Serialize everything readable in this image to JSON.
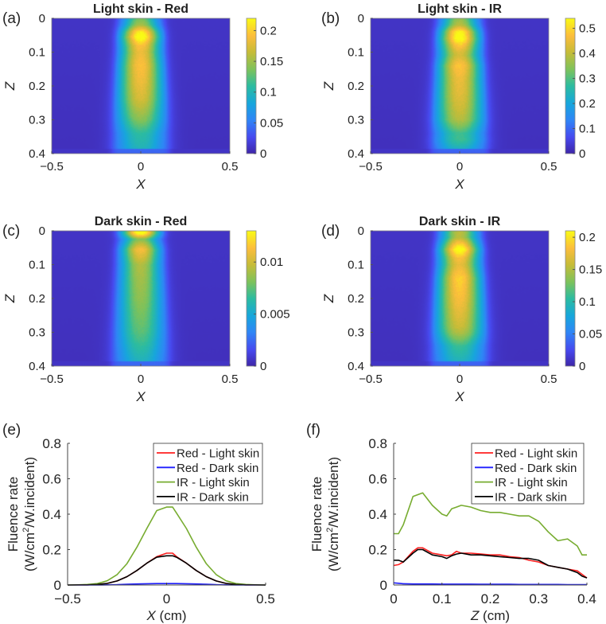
{
  "colors": {
    "red": "#ff1f1f",
    "blue": "#1f1fff",
    "green": "#77ac30",
    "black": "#000000"
  },
  "chart_data": [
    {
      "type": "heatmap",
      "panel_label": "(a)",
      "title": "Light skin - Red",
      "xlabel": "X",
      "ylabel": "Z",
      "xlim": [
        -0.5,
        0.5
      ],
      "ylim": [
        0,
        0.4
      ],
      "xticks": [
        {
          "v": -0.5,
          "label": "−0.5"
        },
        {
          "v": 0,
          "label": "0"
        },
        {
          "v": 0.5,
          "label": "0.5"
        }
      ],
      "yticks": [
        {
          "v": 0,
          "label": "0"
        },
        {
          "v": 0.1,
          "label": "0.1"
        },
        {
          "v": 0.2,
          "label": "0.2"
        },
        {
          "v": 0.3,
          "label": "0.3"
        },
        {
          "v": 0.4,
          "label": "0.4"
        }
      ],
      "colorbar": {
        "min": 0,
        "max": 0.22,
        "ticks": [
          {
            "v": 0,
            "label": "0"
          },
          {
            "v": 0.05,
            "label": "0.05"
          },
          {
            "v": 0.1,
            "label": "0.1"
          },
          {
            "v": 0.15,
            "label": "0.15"
          },
          {
            "v": 0.2,
            "label": "0.2"
          }
        ]
      },
      "centerline_profile": {
        "z": [
          0,
          0.02,
          0.04,
          0.055,
          0.08,
          0.1,
          0.14,
          0.2,
          0.24,
          0.28,
          0.3,
          0.34,
          0.38,
          0.4
        ],
        "values": [
          0.12,
          0.14,
          0.2,
          0.215,
          0.18,
          0.17,
          0.18,
          0.17,
          0.16,
          0.14,
          0.13,
          0.1,
          0.09,
          0.08
        ]
      }
    },
    {
      "type": "heatmap",
      "panel_label": "(b)",
      "title": "Light skin - IR",
      "xlabel": "X",
      "ylabel": "Z",
      "xlim": [
        -0.5,
        0.5
      ],
      "ylim": [
        0,
        0.4
      ],
      "xticks": [
        {
          "v": -0.5,
          "label": "−0.5"
        },
        {
          "v": 0,
          "label": "0"
        },
        {
          "v": 0.5,
          "label": "0.5"
        }
      ],
      "yticks": [
        {
          "v": 0,
          "label": "0"
        },
        {
          "v": 0.1,
          "label": "0.1"
        },
        {
          "v": 0.2,
          "label": "0.2"
        },
        {
          "v": 0.3,
          "label": "0.3"
        },
        {
          "v": 0.4,
          "label": "0.4"
        }
      ],
      "colorbar": {
        "min": 0,
        "max": 0.54,
        "ticks": [
          {
            "v": 0,
            "label": "0"
          },
          {
            "v": 0.1,
            "label": "0.1"
          },
          {
            "v": 0.2,
            "label": "0.2"
          },
          {
            "v": 0.3,
            "label": "0.3"
          },
          {
            "v": 0.4,
            "label": "0.4"
          },
          {
            "v": 0.5,
            "label": "0.5"
          }
        ]
      },
      "centerline_profile": {
        "z": [
          0,
          0.02,
          0.04,
          0.06,
          0.08,
          0.1,
          0.11,
          0.14,
          0.18,
          0.22,
          0.26,
          0.3,
          0.34,
          0.36,
          0.38,
          0.4
        ],
        "values": [
          0.32,
          0.36,
          0.5,
          0.52,
          0.45,
          0.4,
          0.39,
          0.45,
          0.42,
          0.41,
          0.39,
          0.36,
          0.26,
          0.26,
          0.22,
          0.18
        ]
      }
    },
    {
      "type": "heatmap",
      "panel_label": "(c)",
      "title": "Dark skin - Red",
      "xlabel": "X",
      "ylabel": "Z",
      "xlim": [
        -0.5,
        0.5
      ],
      "ylim": [
        0,
        0.4
      ],
      "xticks": [
        {
          "v": -0.5,
          "label": "−0.5"
        },
        {
          "v": 0,
          "label": "0"
        },
        {
          "v": 0.5,
          "label": "0.5"
        }
      ],
      "yticks": [
        {
          "v": 0,
          "label": "0"
        },
        {
          "v": 0.1,
          "label": "0.1"
        },
        {
          "v": 0.2,
          "label": "0.2"
        },
        {
          "v": 0.3,
          "label": "0.3"
        },
        {
          "v": 0.4,
          "label": "0.4"
        }
      ],
      "colorbar": {
        "min": 0,
        "max": 0.013,
        "ticks": [
          {
            "v": 0,
            "label": "0"
          },
          {
            "v": 0.005,
            "label": "0.005"
          },
          {
            "v": 0.01,
            "label": "0.01"
          }
        ]
      },
      "centerline_profile": {
        "z": [
          0,
          0.008,
          0.025,
          0.055,
          0.1,
          0.2,
          0.3,
          0.38,
          0.4
        ],
        "values": [
          0.013,
          0.0125,
          0.0075,
          0.0105,
          0.0085,
          0.0078,
          0.0068,
          0.0052,
          0.005
        ]
      }
    },
    {
      "type": "heatmap",
      "panel_label": "(d)",
      "title": "Dark skin - IR",
      "xlabel": "X",
      "ylabel": "Z",
      "xlim": [
        -0.5,
        0.5
      ],
      "ylim": [
        0,
        0.4
      ],
      "xticks": [
        {
          "v": -0.5,
          "label": "−0.5"
        },
        {
          "v": 0,
          "label": "0"
        },
        {
          "v": 0.5,
          "label": "0.5"
        }
      ],
      "yticks": [
        {
          "v": 0,
          "label": "0"
        },
        {
          "v": 0.1,
          "label": "0.1"
        },
        {
          "v": 0.2,
          "label": "0.2"
        },
        {
          "v": 0.3,
          "label": "0.3"
        },
        {
          "v": 0.4,
          "label": "0.4"
        }
      ],
      "colorbar": {
        "min": 0,
        "max": 0.21,
        "ticks": [
          {
            "v": 0,
            "label": "0"
          },
          {
            "v": 0.05,
            "label": "0.05"
          },
          {
            "v": 0.1,
            "label": "0.1"
          },
          {
            "v": 0.15,
            "label": "0.15"
          },
          {
            "v": 0.2,
            "label": "0.2"
          }
        ]
      },
      "centerline_profile": {
        "z": [
          0,
          0.02,
          0.04,
          0.055,
          0.08,
          0.1,
          0.14,
          0.2,
          0.24,
          0.28,
          0.3,
          0.34,
          0.38,
          0.4
        ],
        "values": [
          0.14,
          0.14,
          0.18,
          0.205,
          0.17,
          0.16,
          0.18,
          0.17,
          0.16,
          0.15,
          0.14,
          0.1,
          0.085,
          0.07
        ]
      }
    },
    {
      "type": "line",
      "panel_label": "(e)",
      "xlabel": "X",
      "xlabel_unit": " (cm)",
      "ylabel_line1": "Fluence rate",
      "ylabel_line2_a": "(W/cm",
      "ylabel_line2_sup": "2",
      "ylabel_line2_b": "/W.incident)",
      "xlim": [
        -0.5,
        0.5
      ],
      "ylim": [
        0,
        0.8
      ],
      "xticks": [
        {
          "v": -0.5,
          "label": "−0.5"
        },
        {
          "v": 0,
          "label": "0"
        },
        {
          "v": 0.5,
          "label": "0.5"
        }
      ],
      "yticks": [
        {
          "v": 0,
          "label": "0"
        },
        {
          "v": 0.2,
          "label": "0.2"
        },
        {
          "v": 0.4,
          "label": "0.4"
        },
        {
          "v": 0.6,
          "label": "0.6"
        },
        {
          "v": 0.8,
          "label": "0.8"
        }
      ],
      "legend_position": "top-right",
      "x": [
        -0.5,
        -0.45,
        -0.4,
        -0.35,
        -0.3,
        -0.25,
        -0.2,
        -0.15,
        -0.1,
        -0.05,
        0,
        0.03,
        0.05,
        0.1,
        0.15,
        0.2,
        0.25,
        0.3,
        0.35,
        0.4,
        0.45,
        0.5
      ],
      "series": [
        {
          "name": "Red - Light skin",
          "color_key": "red",
          "values": [
            0,
            0.001,
            0.001,
            0.003,
            0.009,
            0.023,
            0.047,
            0.082,
            0.123,
            0.16,
            0.18,
            0.18,
            0.16,
            0.123,
            0.082,
            0.047,
            0.023,
            0.009,
            0.003,
            0.001,
            0.001,
            0
          ]
        },
        {
          "name": "Red - Dark skin",
          "color_key": "blue",
          "values": [
            0,
            0,
            0,
            0,
            0.001,
            0.002,
            0.004,
            0.006,
            0.007,
            0.008,
            0.008,
            0.008,
            0.008,
            0.007,
            0.006,
            0.004,
            0.002,
            0.001,
            0,
            0,
            0,
            0
          ]
        },
        {
          "name": "IR - Light skin",
          "color_key": "green",
          "values": [
            0,
            0.001,
            0.003,
            0.008,
            0.024,
            0.059,
            0.121,
            0.213,
            0.319,
            0.42,
            0.44,
            0.44,
            0.406,
            0.319,
            0.213,
            0.121,
            0.059,
            0.024,
            0.008,
            0.003,
            0.001,
            0
          ]
        },
        {
          "name": "IR - Dark skin",
          "color_key": "black",
          "values": [
            0,
            0.001,
            0.001,
            0.003,
            0.009,
            0.023,
            0.047,
            0.082,
            0.123,
            0.157,
            0.165,
            0.165,
            0.157,
            0.123,
            0.082,
            0.047,
            0.023,
            0.009,
            0.003,
            0.001,
            0.001,
            0
          ]
        }
      ]
    },
    {
      "type": "line",
      "panel_label": "(f)",
      "xlabel": "Z",
      "xlabel_unit": " (cm)",
      "ylabel_line1": "Fluence rate",
      "ylabel_line2_a": "(W/cm",
      "ylabel_line2_sup": "2",
      "ylabel_line2_b": "/W.incident)",
      "xlim": [
        0,
        0.4
      ],
      "ylim": [
        0,
        0.8
      ],
      "xticks": [
        {
          "v": 0,
          "label": "0"
        },
        {
          "v": 0.1,
          "label": "0.1"
        },
        {
          "v": 0.2,
          "label": "0.2"
        },
        {
          "v": 0.3,
          "label": "0.3"
        },
        {
          "v": 0.4,
          "label": "0.4"
        }
      ],
      "yticks": [
        {
          "v": 0,
          "label": "0"
        },
        {
          "v": 0.2,
          "label": "0.2"
        },
        {
          "v": 0.4,
          "label": "0.4"
        },
        {
          "v": 0.6,
          "label": "0.6"
        },
        {
          "v": 0.8,
          "label": "0.8"
        }
      ],
      "legend_position": "top-right",
      "x": [
        0,
        0.01,
        0.02,
        0.04,
        0.05,
        0.06,
        0.08,
        0.1,
        0.11,
        0.12,
        0.13,
        0.14,
        0.16,
        0.18,
        0.2,
        0.22,
        0.24,
        0.26,
        0.28,
        0.3,
        0.32,
        0.34,
        0.36,
        0.38,
        0.39,
        0.4
      ],
      "series": [
        {
          "name": "Red - Light skin",
          "color_key": "red",
          "values": [
            0.11,
            0.115,
            0.13,
            0.19,
            0.21,
            0.21,
            0.18,
            0.17,
            0.165,
            0.17,
            0.19,
            0.18,
            0.18,
            0.175,
            0.17,
            0.17,
            0.16,
            0.155,
            0.14,
            0.13,
            0.11,
            0.1,
            0.09,
            0.08,
            0.06,
            0.04
          ]
        },
        {
          "name": "Red - Dark skin",
          "color_key": "blue",
          "values": [
            0.012,
            0.01,
            0.007,
            0.006,
            0.006,
            0.006,
            0.006,
            0.005,
            0.005,
            0.005,
            0.005,
            0.005,
            0.005,
            0.004,
            0.004,
            0.004,
            0.004,
            0.003,
            0.003,
            0.003,
            0.003,
            0.003,
            0.002,
            0.002,
            0.002,
            0.002
          ]
        },
        {
          "name": "IR - Light skin",
          "color_key": "green",
          "values": [
            0.29,
            0.29,
            0.34,
            0.5,
            0.51,
            0.52,
            0.45,
            0.4,
            0.39,
            0.43,
            0.44,
            0.45,
            0.44,
            0.42,
            0.41,
            0.41,
            0.4,
            0.39,
            0.39,
            0.36,
            0.3,
            0.25,
            0.26,
            0.22,
            0.17,
            0.17
          ]
        },
        {
          "name": "IR - Dark skin",
          "color_key": "black",
          "values": [
            0.14,
            0.14,
            0.13,
            0.18,
            0.2,
            0.2,
            0.17,
            0.16,
            0.15,
            0.165,
            0.175,
            0.18,
            0.17,
            0.17,
            0.165,
            0.16,
            0.155,
            0.15,
            0.15,
            0.14,
            0.11,
            0.1,
            0.09,
            0.07,
            0.05,
            0.04
          ]
        }
      ]
    }
  ]
}
